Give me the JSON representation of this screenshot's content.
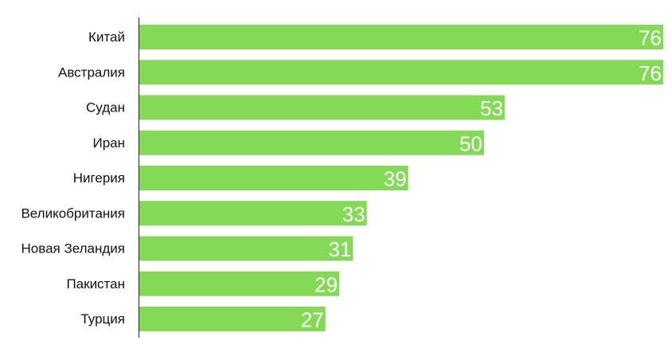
{
  "chart_data": {
    "type": "bar",
    "orientation": "horizontal",
    "categories": [
      "Китай",
      "Австралия",
      "Судан",
      "Иран",
      "Нигерия",
      "Великобритания",
      "Новая Зеландия",
      "Пакистан",
      "Турция"
    ],
    "values": [
      76,
      76,
      53,
      50,
      39,
      33,
      31,
      29,
      27
    ],
    "data_labels": [
      "76",
      "76",
      "53",
      "50",
      "39",
      "33",
      "31",
      "29",
      "27"
    ],
    "xlim": [
      0,
      76
    ],
    "grid": false,
    "legend": "none",
    "colors": {
      "bar": "#84d957",
      "axis": "#222222",
      "category_text": "#111111",
      "value_text": "#ffffff"
    }
  }
}
